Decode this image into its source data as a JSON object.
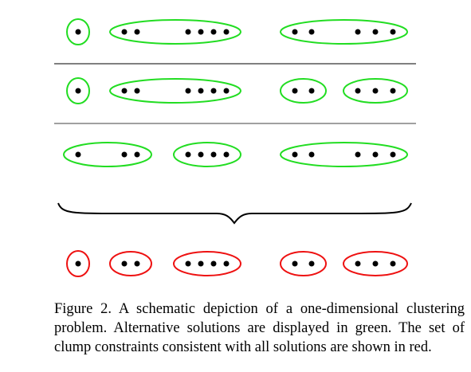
{
  "figure": {
    "caption": "Figure 2. A schematic depiction of a one-dimensional clustering problem. Alternative solutions are displayed in green. The set of clump constraints consistent with all solutions are shown in red.",
    "colors": {
      "solution": "#22dd22",
      "constraint": "#ee1111",
      "point": "#000000",
      "separator": "#808080",
      "brace": "#000000"
    },
    "solutions": [
      {
        "name": "solution-1",
        "groups": [
          {
            "points": [
              "p1"
            ]
          },
          {
            "points": [
              "p2",
              "p3",
              "p4",
              "p5",
              "p6",
              "p7"
            ]
          },
          {
            "points": [
              "p8",
              "p9",
              "p10",
              "p11",
              "p12"
            ]
          }
        ]
      },
      {
        "name": "solution-2",
        "groups": [
          {
            "points": [
              "p1"
            ]
          },
          {
            "points": [
              "p2",
              "p3",
              "p4",
              "p5",
              "p6",
              "p7"
            ]
          },
          {
            "points": [
              "p8",
              "p9"
            ]
          },
          {
            "points": [
              "p10",
              "p11",
              "p12"
            ]
          }
        ]
      },
      {
        "name": "solution-3",
        "groups": [
          {
            "points": [
              "p1",
              "p2",
              "p3"
            ]
          },
          {
            "points": [
              "p4",
              "p5",
              "p6",
              "p7"
            ]
          },
          {
            "points": [
              "p8",
              "p9",
              "p10",
              "p11",
              "p12"
            ]
          }
        ]
      }
    ],
    "constraints": {
      "name": "clump-constraints",
      "groups": [
        {
          "points": [
            "p1"
          ]
        },
        {
          "points": [
            "p2",
            "p3"
          ]
        },
        {
          "points": [
            "p4",
            "p5",
            "p6",
            "p7"
          ]
        },
        {
          "points": [
            "p8",
            "p9"
          ]
        },
        {
          "points": [
            "p10",
            "p11",
            "p12"
          ]
        }
      ]
    }
  }
}
